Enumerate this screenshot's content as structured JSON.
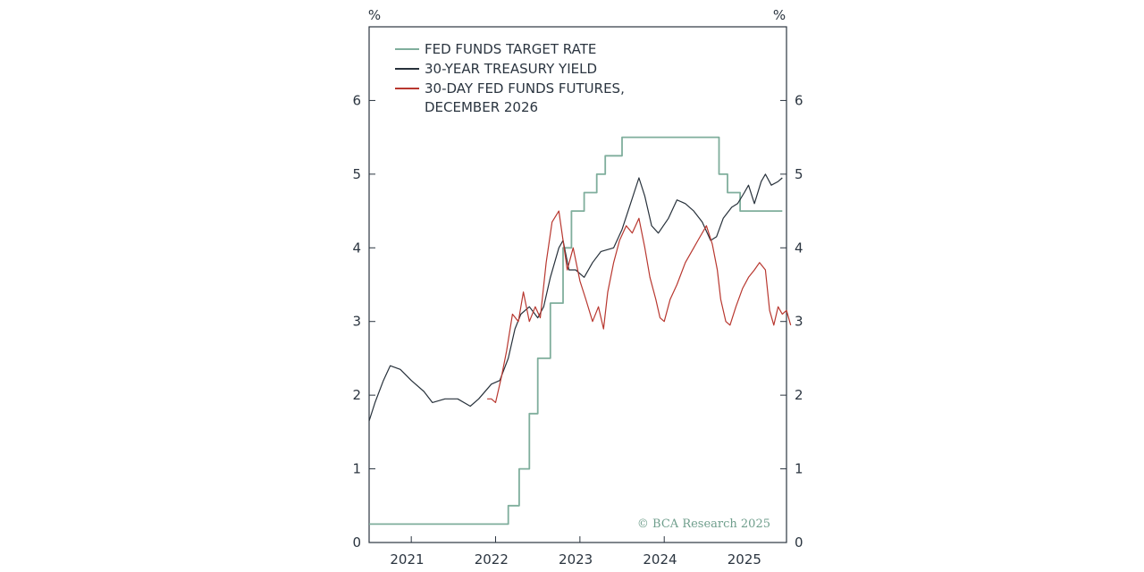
{
  "chart_data": {
    "type": "line",
    "title": "",
    "ylabel_left": "%",
    "ylabel_right": "%",
    "ylim": [
      0,
      7
    ],
    "yticks": [
      "0",
      "1",
      "2",
      "3",
      "4",
      "5",
      "6"
    ],
    "xlim": [
      2020.55,
      2025.5
    ],
    "xticks": [
      {
        "label": "2021",
        "value": 2021.0
      },
      {
        "label": "2022",
        "value": 2022.0
      },
      {
        "label": "2023",
        "value": 2023.0
      },
      {
        "label": "2024",
        "value": 2024.0
      },
      {
        "label": "2025",
        "value": 2025.0
      }
    ],
    "legend": [
      {
        "label": "FED FUNDS TARGET RATE",
        "color": "#7fae9c"
      },
      {
        "label": "30-YEAR TREASURY YIELD",
        "color": "#27313b"
      },
      {
        "label": "30-DAY FED FUNDS FUTURES,",
        "label_line2": "DECEMBER 2026",
        "color": "#b8372f"
      }
    ],
    "credit": "© BCA Research 2025",
    "series": [
      {
        "name": "FED FUNDS TARGET RATE",
        "color": "#7fae9c",
        "step": true,
        "points": [
          [
            2020.55,
            0.25
          ],
          [
            2022.2,
            0.5
          ],
          [
            2022.33,
            1.0
          ],
          [
            2022.45,
            1.75
          ],
          [
            2022.55,
            2.5
          ],
          [
            2022.7,
            3.25
          ],
          [
            2022.85,
            4.0
          ],
          [
            2022.95,
            4.5
          ],
          [
            2023.1,
            4.75
          ],
          [
            2023.25,
            5.0
          ],
          [
            2023.35,
            5.25
          ],
          [
            2023.55,
            5.5
          ],
          [
            2024.7,
            5.0
          ],
          [
            2024.8,
            4.75
          ],
          [
            2024.95,
            4.5
          ],
          [
            2025.45,
            4.5
          ]
        ]
      },
      {
        "name": "30-YEAR TREASURY YIELD",
        "color": "#27313b",
        "step": false,
        "points": [
          [
            2020.55,
            1.65
          ],
          [
            2020.62,
            1.9
          ],
          [
            2020.72,
            2.2
          ],
          [
            2020.8,
            2.4
          ],
          [
            2020.92,
            2.35
          ],
          [
            2021.05,
            2.2
          ],
          [
            2021.2,
            2.05
          ],
          [
            2021.3,
            1.9
          ],
          [
            2021.45,
            1.95
          ],
          [
            2021.6,
            1.95
          ],
          [
            2021.75,
            1.85
          ],
          [
            2021.85,
            1.95
          ],
          [
            2022.0,
            2.15
          ],
          [
            2022.1,
            2.2
          ],
          [
            2022.2,
            2.5
          ],
          [
            2022.28,
            2.9
          ],
          [
            2022.35,
            3.1
          ],
          [
            2022.45,
            3.2
          ],
          [
            2022.55,
            3.05
          ],
          [
            2022.62,
            3.2
          ],
          [
            2022.7,
            3.6
          ],
          [
            2022.8,
            4.0
          ],
          [
            2022.85,
            4.1
          ],
          [
            2022.92,
            3.7
          ],
          [
            2023.0,
            3.7
          ],
          [
            2023.1,
            3.6
          ],
          [
            2023.2,
            3.8
          ],
          [
            2023.3,
            3.95
          ],
          [
            2023.45,
            4.0
          ],
          [
            2023.55,
            4.25
          ],
          [
            2023.65,
            4.6
          ],
          [
            2023.75,
            4.95
          ],
          [
            2023.82,
            4.7
          ],
          [
            2023.9,
            4.3
          ],
          [
            2023.98,
            4.2
          ],
          [
            2024.1,
            4.4
          ],
          [
            2024.2,
            4.65
          ],
          [
            2024.3,
            4.6
          ],
          [
            2024.4,
            4.5
          ],
          [
            2024.5,
            4.35
          ],
          [
            2024.6,
            4.1
          ],
          [
            2024.67,
            4.15
          ],
          [
            2024.75,
            4.4
          ],
          [
            2024.85,
            4.55
          ],
          [
            2024.92,
            4.6
          ],
          [
            2025.0,
            4.75
          ],
          [
            2025.05,
            4.85
          ],
          [
            2025.12,
            4.6
          ],
          [
            2025.2,
            4.9
          ],
          [
            2025.25,
            5.0
          ],
          [
            2025.32,
            4.85
          ],
          [
            2025.4,
            4.9
          ],
          [
            2025.45,
            4.95
          ]
        ]
      },
      {
        "name": "30-DAY FED FUNDS FUTURES, DECEMBER 2026",
        "color": "#b8372f",
        "step": false,
        "points": [
          [
            2021.95,
            1.95
          ],
          [
            2022.0,
            1.95
          ],
          [
            2022.05,
            1.9
          ],
          [
            2022.12,
            2.25
          ],
          [
            2022.18,
            2.6
          ],
          [
            2022.25,
            3.1
          ],
          [
            2022.32,
            3.0
          ],
          [
            2022.38,
            3.4
          ],
          [
            2022.45,
            3.0
          ],
          [
            2022.52,
            3.2
          ],
          [
            2022.58,
            3.05
          ],
          [
            2022.65,
            3.8
          ],
          [
            2022.72,
            4.35
          ],
          [
            2022.8,
            4.5
          ],
          [
            2022.85,
            4.1
          ],
          [
            2022.9,
            3.7
          ],
          [
            2022.97,
            4.0
          ],
          [
            2023.05,
            3.55
          ],
          [
            2023.12,
            3.3
          ],
          [
            2023.2,
            3.0
          ],
          [
            2023.27,
            3.2
          ],
          [
            2023.33,
            2.9
          ],
          [
            2023.38,
            3.4
          ],
          [
            2023.45,
            3.8
          ],
          [
            2023.52,
            4.1
          ],
          [
            2023.6,
            4.3
          ],
          [
            2023.67,
            4.2
          ],
          [
            2023.75,
            4.4
          ],
          [
            2023.82,
            4.0
          ],
          [
            2023.88,
            3.6
          ],
          [
            2023.95,
            3.3
          ],
          [
            2024.0,
            3.05
          ],
          [
            2024.05,
            3.0
          ],
          [
            2024.12,
            3.3
          ],
          [
            2024.2,
            3.5
          ],
          [
            2024.3,
            3.8
          ],
          [
            2024.4,
            4.0
          ],
          [
            2024.45,
            4.1
          ],
          [
            2024.55,
            4.3
          ],
          [
            2024.62,
            4.05
          ],
          [
            2024.68,
            3.7
          ],
          [
            2024.72,
            3.3
          ],
          [
            2024.78,
            3.0
          ],
          [
            2024.83,
            2.95
          ],
          [
            2024.9,
            3.2
          ],
          [
            2024.98,
            3.45
          ],
          [
            2025.05,
            3.6
          ],
          [
            2025.12,
            3.7
          ],
          [
            2025.18,
            3.8
          ],
          [
            2025.25,
            3.7
          ],
          [
            2025.3,
            3.15
          ],
          [
            2025.35,
            2.95
          ],
          [
            2025.4,
            3.2
          ],
          [
            2025.45,
            3.1
          ],
          [
            2025.5,
            3.15
          ],
          [
            2025.55,
            2.95
          ]
        ]
      }
    ]
  }
}
